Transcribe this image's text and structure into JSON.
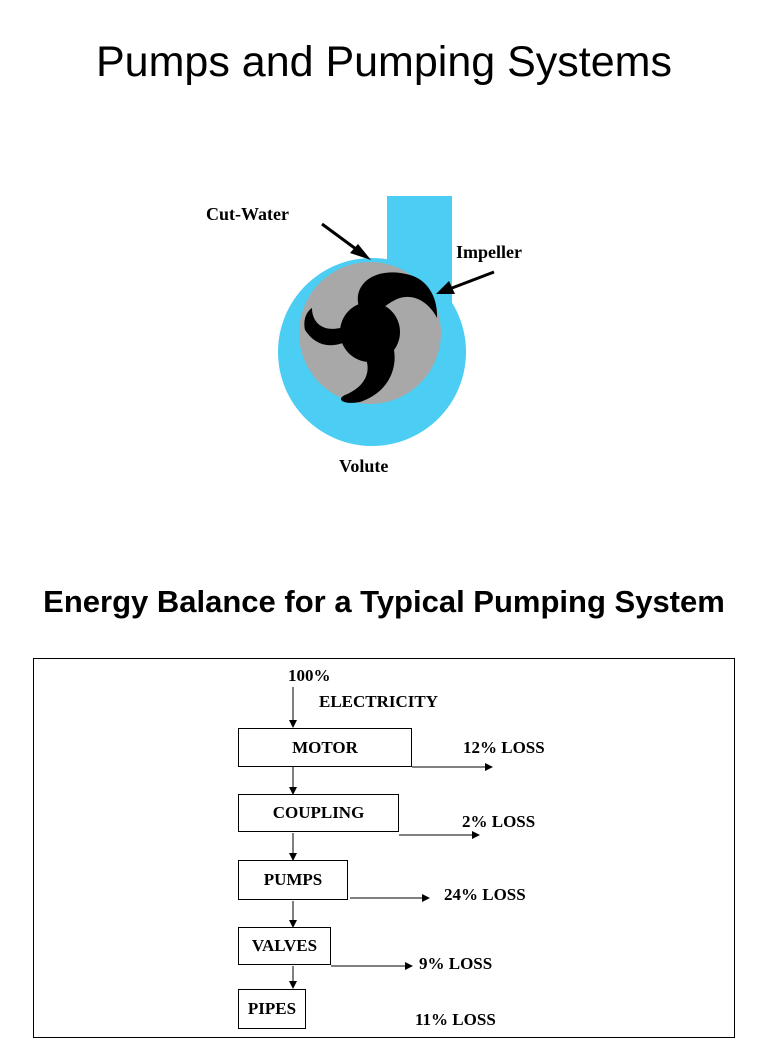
{
  "page": {
    "title": "Pumps and Pumping Systems"
  },
  "pump_diagram": {
    "labels": {
      "cut_water": "Cut-Water",
      "impeller": "Impeller",
      "volute": "Volute"
    },
    "colors": {
      "volute": "#4ccdf3",
      "impeller_disc": "#a8a8a8",
      "impeller_blades": "#000000"
    }
  },
  "energy_balance": {
    "title": "Energy Balance for a Typical Pumping System",
    "input_percent": "100%",
    "input_label": "ELECTRICITY",
    "stages": [
      {
        "name": "MOTOR",
        "loss": "12% LOSS"
      },
      {
        "name": "COUPLING",
        "loss": "2% LOSS"
      },
      {
        "name": "PUMPS",
        "loss": "24% LOSS"
      },
      {
        "name": "VALVES",
        "loss": "9% LOSS"
      },
      {
        "name": "PIPES",
        "loss": "11% LOSS"
      }
    ]
  }
}
